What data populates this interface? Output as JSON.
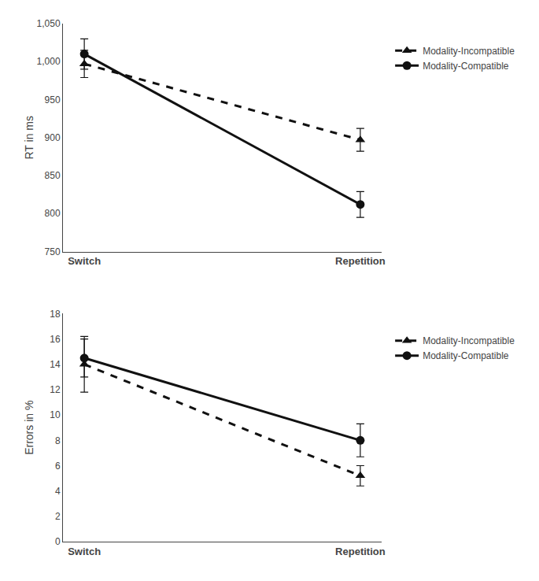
{
  "chart_data": [
    {
      "type": "line",
      "categories": [
        "Switch",
        "Repetition"
      ],
      "ylabel": "RT in ms",
      "ylim": [
        750,
        1050
      ],
      "yticks": [
        750,
        800,
        850,
        900,
        950,
        {
          "value": 1000,
          "label": "1,000"
        },
        {
          "value": 1050,
          "label": "1,050"
        }
      ],
      "grid": false,
      "legend": "right",
      "series": [
        {
          "name": "Modality-Incompatible",
          "color": "#111111",
          "marker": "triangle",
          "line_style": "dashed",
          "values": [
            997,
            897
          ],
          "errors": [
            18,
            15
          ]
        },
        {
          "name": "Modality-Compatible",
          "color": "#111111",
          "marker": "circle",
          "line_style": "solid",
          "values": [
            1010,
            812
          ],
          "errors": [
            20,
            17
          ]
        }
      ]
    },
    {
      "type": "line",
      "categories": [
        "Switch",
        "Repetition"
      ],
      "ylabel": "Errors in %",
      "ylim": [
        0,
        18
      ],
      "yticks": [
        0,
        2,
        4,
        6,
        8,
        10,
        12,
        14,
        16,
        18
      ],
      "grid": false,
      "legend": "right",
      "series": [
        {
          "name": "Modality-Incompatible",
          "color": "#111111",
          "marker": "triangle",
          "line_style": "dashed",
          "values": [
            14.0,
            5.2
          ],
          "errors": [
            2.2,
            0.8
          ]
        },
        {
          "name": "Modality-Compatible",
          "color": "#111111",
          "marker": "circle",
          "line_style": "solid",
          "values": [
            14.5,
            8.0
          ],
          "errors": [
            1.5,
            1.3
          ]
        }
      ]
    }
  ]
}
